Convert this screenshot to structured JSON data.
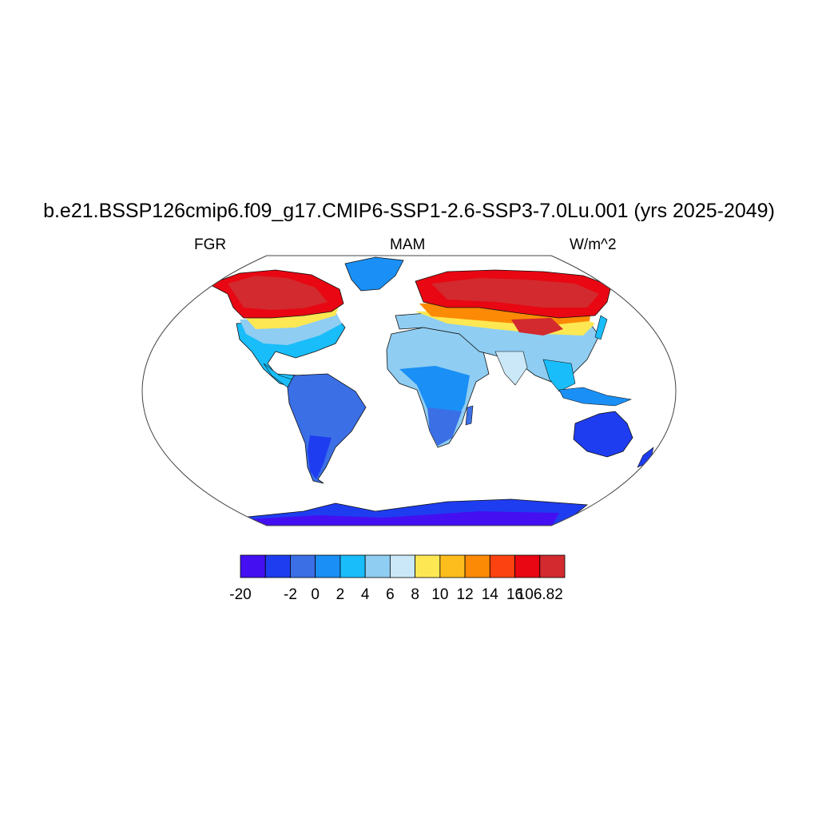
{
  "title": "b.e21.BSSP126cmip6.f09_g17.CMIP6-SSP1-2.6-SSP3-7.0Lu.001 (yrs 2025-2049)",
  "left_label": "FGR",
  "center_label": "MAM",
  "right_label": "W/m^2",
  "colorbar": {
    "colors": [
      "#4410f2",
      "#1f3df0",
      "#3b6fe6",
      "#1a8ff5",
      "#19bdf9",
      "#8fcdf2",
      "#cae8f7",
      "#fde853",
      "#fdbd1c",
      "#fc8a05",
      "#fb4210",
      "#e80712",
      "#d22a2e"
    ],
    "labels": [
      "-20",
      "",
      "-2",
      "0",
      "2",
      "4",
      "6",
      "8",
      "10",
      "12",
      "14",
      "16",
      "106.82"
    ]
  },
  "map": {
    "projection": "Robinson",
    "ocean_color": "#ffffff",
    "outline_color": "#444444",
    "coastline_color": "#111111"
  }
}
